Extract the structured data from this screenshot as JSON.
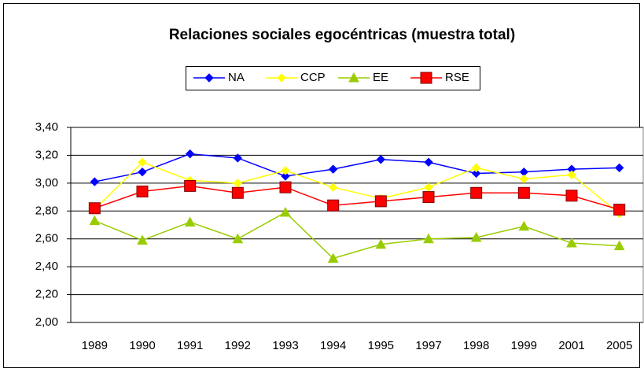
{
  "chart_data": {
    "type": "line",
    "title": "Relaciones sociales egocéntricas (muestra total)",
    "categories": [
      "1989",
      "1990",
      "1991",
      "1992",
      "1993",
      "1994",
      "1995",
      "1997",
      "1998",
      "1999",
      "2001",
      "2005"
    ],
    "series": [
      {
        "name": "NA",
        "color": "#0000ff",
        "marker": "diamond",
        "values": [
          3.01,
          3.08,
          3.21,
          3.18,
          3.05,
          3.1,
          3.17,
          3.15,
          3.07,
          3.08,
          3.1,
          3.11
        ]
      },
      {
        "name": "CCP",
        "color": "#ffff00",
        "marker": "diamond",
        "values": [
          2.81,
          3.15,
          3.02,
          3.0,
          3.09,
          2.97,
          2.89,
          2.97,
          3.11,
          3.03,
          3.06,
          2.78
        ]
      },
      {
        "name": "EE",
        "color": "#99cc00",
        "marker": "triangle",
        "values": [
          2.73,
          2.59,
          2.72,
          2.6,
          2.79,
          2.46,
          2.56,
          2.6,
          2.61,
          2.69,
          2.57,
          2.55
        ]
      },
      {
        "name": "RSE",
        "color": "#ff0000",
        "marker": "square",
        "values": [
          2.82,
          2.94,
          2.98,
          2.93,
          2.97,
          2.84,
          2.87,
          2.9,
          2.93,
          2.93,
          2.91,
          2.81
        ]
      }
    ],
    "ylim": [
      2.0,
      3.4
    ],
    "yticks": [
      {
        "value": 2.0,
        "label": "2,00"
      },
      {
        "value": 2.2,
        "label": "2,20"
      },
      {
        "value": 2.4,
        "label": "2,40"
      },
      {
        "value": 2.6,
        "label": "2,60"
      },
      {
        "value": 2.8,
        "label": "2,80"
      },
      {
        "value": 3.0,
        "label": "3,00"
      },
      {
        "value": 3.2,
        "label": "3,20"
      },
      {
        "value": 3.4,
        "label": "3,40"
      }
    ],
    "grid": true,
    "legend": "top"
  }
}
